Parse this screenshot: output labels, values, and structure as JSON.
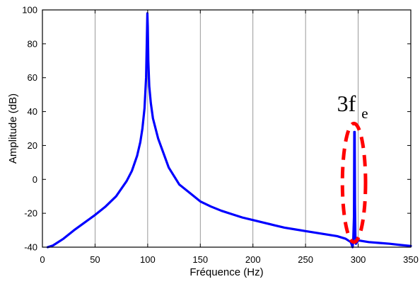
{
  "chart_data": {
    "type": "line",
    "title": "",
    "xlabel": "Fréquence (Hz)",
    "ylabel": "Amplitude (dB)",
    "xlim": [
      0,
      350
    ],
    "ylim": [
      -40,
      100
    ],
    "x_ticks": [
      0,
      50,
      100,
      150,
      200,
      250,
      300,
      350
    ],
    "y_ticks": [
      -40,
      -20,
      0,
      20,
      40,
      60,
      80,
      100
    ],
    "x_tick_labels": [
      "0",
      "50",
      "100",
      "150",
      "200",
      "250",
      "300",
      "350"
    ],
    "y_tick_labels": [
      "-40",
      "-20",
      "0",
      "20",
      "40",
      "60",
      "80",
      "100"
    ],
    "grid": "vertical",
    "series": [
      {
        "color": "#0000ff",
        "points": [
          [
            5,
            -40
          ],
          [
            10,
            -39
          ],
          [
            20,
            -35
          ],
          [
            30,
            -30
          ],
          [
            40,
            -25.5
          ],
          [
            50,
            -21
          ],
          [
            60,
            -16
          ],
          [
            70,
            -10
          ],
          [
            80,
            -1
          ],
          [
            85,
            5
          ],
          [
            90,
            14
          ],
          [
            93,
            22
          ],
          [
            95,
            30
          ],
          [
            97,
            42
          ],
          [
            98.5,
            60
          ],
          [
            99.3,
            85
          ],
          [
            99.7,
            98
          ],
          [
            100.1,
            90
          ],
          [
            100.6,
            70
          ],
          [
            101.5,
            55
          ],
          [
            103,
            45
          ],
          [
            105,
            36
          ],
          [
            110,
            24
          ],
          [
            120,
            7
          ],
          [
            130,
            -3
          ],
          [
            140,
            -8
          ],
          [
            150,
            -13
          ],
          [
            160,
            -16
          ],
          [
            170,
            -18.5
          ],
          [
            180,
            -20.5
          ],
          [
            190,
            -22.5
          ],
          [
            200,
            -24
          ],
          [
            210,
            -25.5
          ],
          [
            220,
            -27
          ],
          [
            230,
            -28.5
          ],
          [
            240,
            -29.5
          ],
          [
            250,
            -30.5
          ],
          [
            260,
            -31.5
          ],
          [
            270,
            -32.5
          ],
          [
            280,
            -33.5
          ],
          [
            288,
            -35
          ],
          [
            293,
            -37
          ],
          [
            294.7,
            -40
          ],
          [
            295.3,
            -36
          ],
          [
            296,
            -22
          ],
          [
            296.3,
            28
          ],
          [
            296.7,
            28
          ],
          [
            297,
            -15
          ],
          [
            297.4,
            -34
          ],
          [
            297.8,
            -38
          ],
          [
            300,
            -36
          ],
          [
            310,
            -37
          ],
          [
            320,
            -37.5
          ],
          [
            330,
            -38
          ],
          [
            340,
            -38.7
          ],
          [
            350,
            -39.3
          ]
        ]
      }
    ],
    "annotations": [
      {
        "text_main": "3f",
        "text_sub": "e",
        "x": 296,
        "y": 44
      },
      {
        "shape": "ellipse",
        "color": "#ff0000",
        "cx": 296,
        "cy": -2,
        "rx": 11,
        "ry": 35
      }
    ]
  },
  "styles": {
    "axis_color": "#000000",
    "grid_color": "#808080",
    "line_color": "#0000ff",
    "annotation_color": "#ff0000"
  }
}
